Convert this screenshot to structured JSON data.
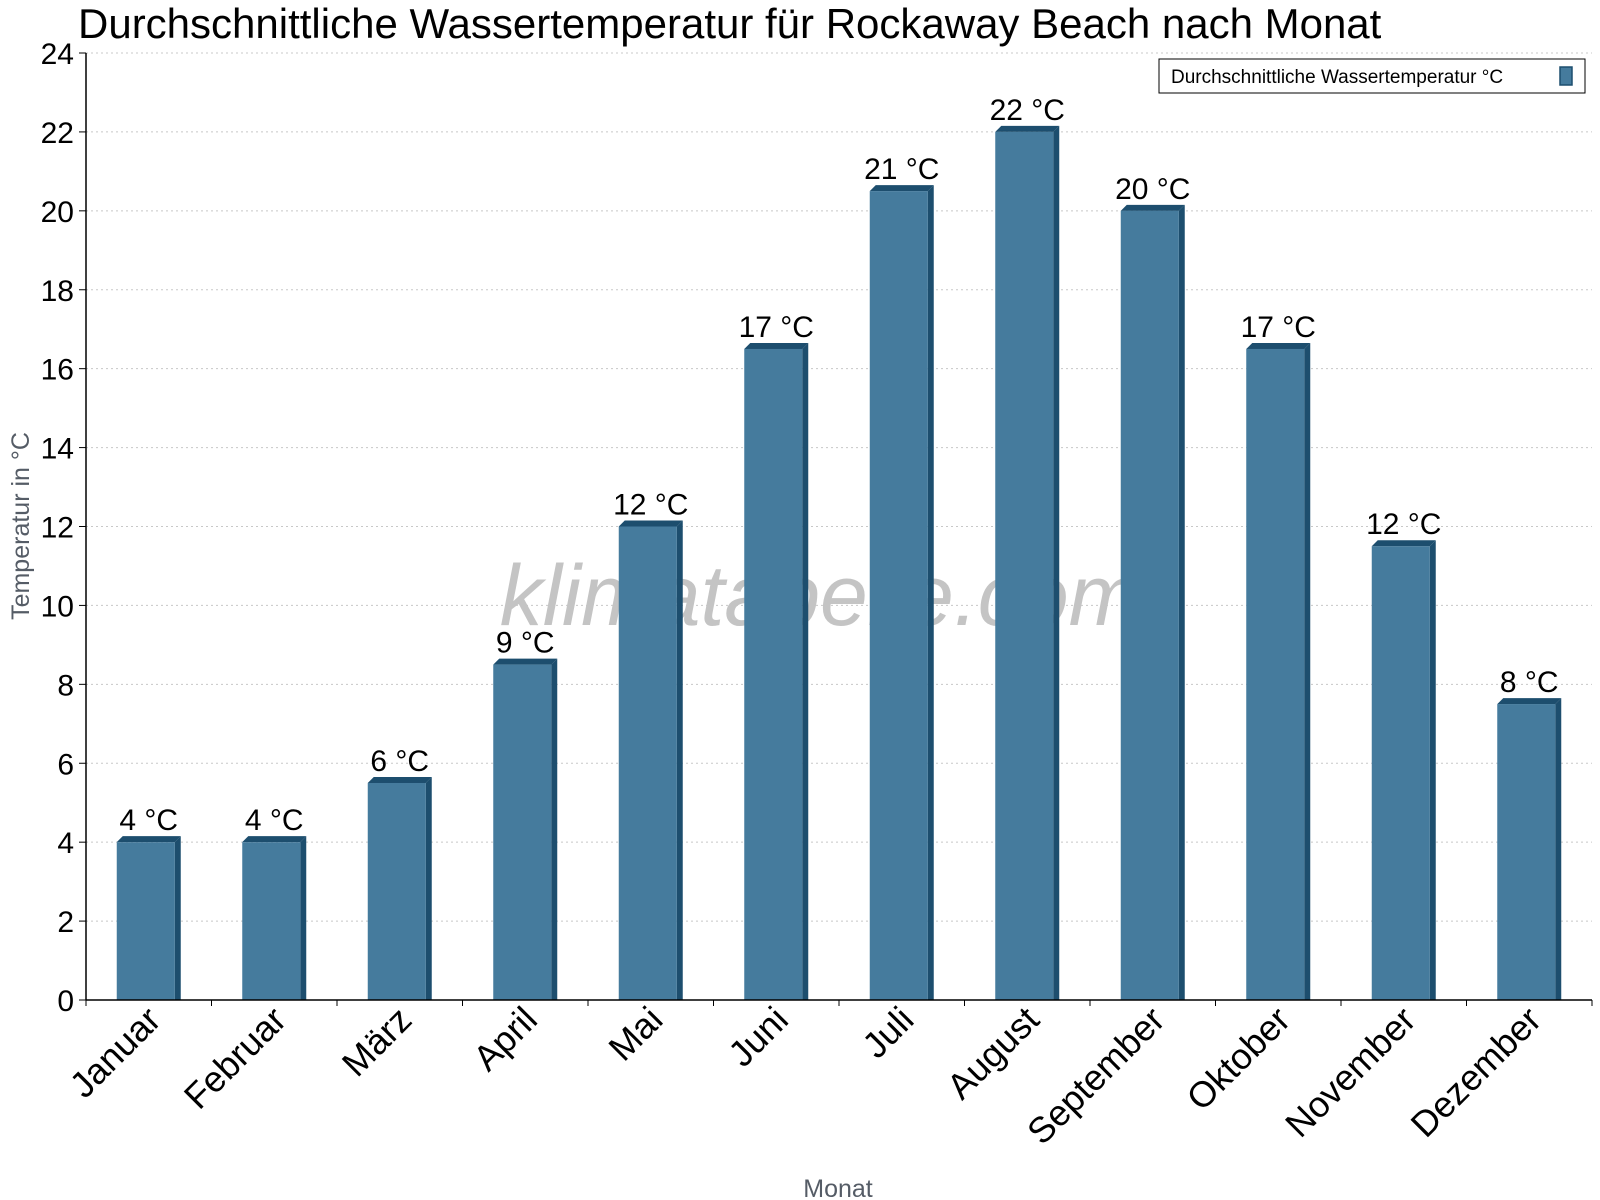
{
  "chart_data": {
    "type": "bar",
    "title": "Durchschnittliche Wassertemperatur für Rockaway Beach nach Monat",
    "xlabel": "Monat",
    "ylabel": "Temperatur in °C",
    "ylim": [
      0,
      24
    ],
    "yticks": [
      0,
      2,
      4,
      6,
      8,
      10,
      12,
      14,
      16,
      18,
      20,
      22,
      24
    ],
    "grid": true,
    "legend_position": "top-right",
    "categories": [
      "Januar",
      "Februar",
      "März",
      "April",
      "Mai",
      "Juni",
      "Juli",
      "August",
      "September",
      "Oktober",
      "November",
      "Dezember"
    ],
    "series": [
      {
        "name": "Durchschnittliche Wassertemperatur °C",
        "values": [
          4,
          4,
          5.5,
          8.5,
          12,
          16.5,
          20.5,
          22,
          20,
          16.5,
          11.5,
          7.5
        ],
        "data_labels": [
          "4 °C",
          "4 °C",
          "6 °C",
          "9 °C",
          "12 °C",
          "17 °C",
          "21 °C",
          "22 °C",
          "20 °C",
          "17 °C",
          "12 °C",
          "8 °C"
        ],
        "color": "#457b9d",
        "edge_color": "#1d4e6e"
      }
    ],
    "watermark": "klimatabelle.com"
  }
}
